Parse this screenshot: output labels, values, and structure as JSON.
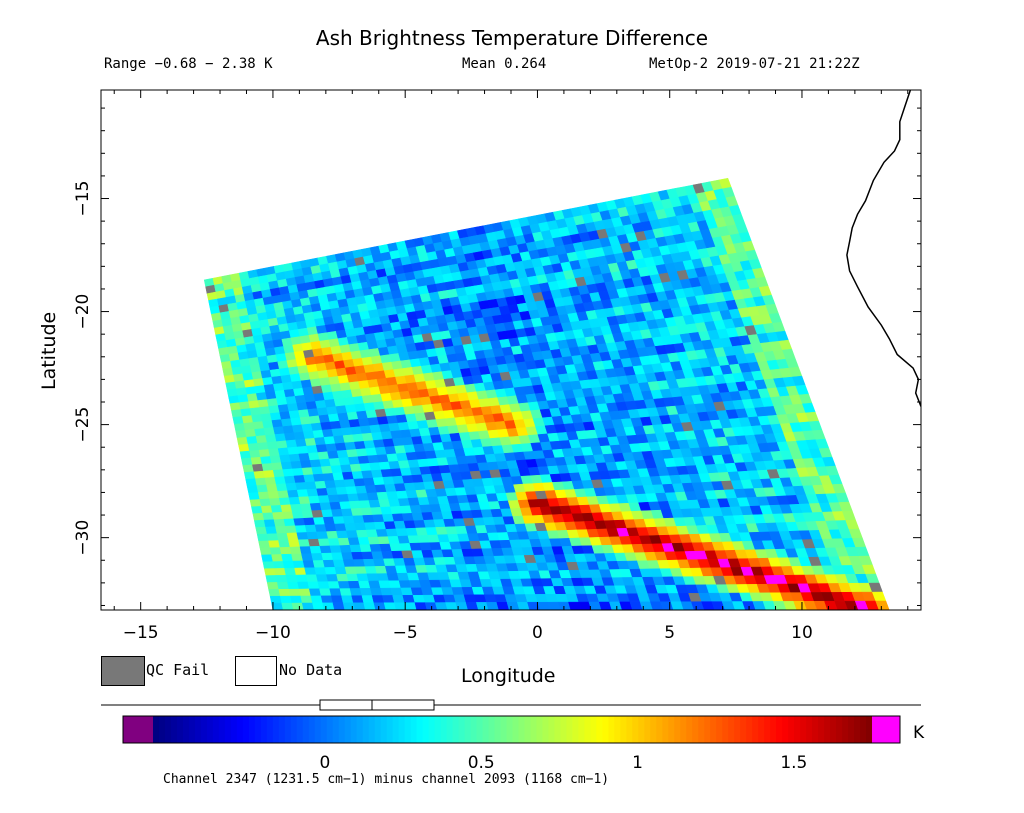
{
  "header": {
    "title": "Ash Brightness Temperature Difference",
    "range": "Range −0.68 − 2.38 K",
    "mean": "Mean 0.264",
    "satellite_time": "MetOp-2 2019-07-21 21:22Z"
  },
  "legend": {
    "qc_fail": "QC Fail",
    "no_data": "No Data",
    "qc_fail_color": "#787878",
    "no_data_color": "#ffffff"
  },
  "colorbar": {
    "unit": "K",
    "ticks": [
      "0",
      "0.5",
      "1",
      "1.5"
    ],
    "tick_values": [
      0,
      0.5,
      1,
      1.5
    ],
    "vmin": -0.55,
    "vmax": 1.75,
    "under_color": "#800080",
    "over_color": "#ff00ff",
    "colors": [
      "#00007f",
      "#0000ff",
      "#007fff",
      "#00ffff",
      "#7fff7f",
      "#ffff00",
      "#ff7f00",
      "#ff0000",
      "#7f0000"
    ],
    "footnote": "Channel 2347 (1231.5 cm−1) minus channel 2093 (1168 cm−1)"
  },
  "chart_data": {
    "type": "heatmap",
    "title": "Ash Brightness Temperature Difference",
    "xlabel": "Longitude",
    "ylabel": "Latitude",
    "xlim": [
      -16.5,
      14.5
    ],
    "ylim": [
      -33.2,
      -10.2
    ],
    "x_ticks": [
      -15,
      -10,
      -5,
      0,
      5,
      10
    ],
    "y_ticks": [
      -15,
      -20,
      -25,
      -30
    ],
    "x_tick_labels": [
      "−15",
      "−10",
      "−5",
      "0",
      "5",
      "10"
    ],
    "y_tick_labels": [
      "−15",
      "−20",
      "−25",
      "−30"
    ],
    "grid": false,
    "swath_corners": {
      "top_left": [
        -12.6,
        -18.6
      ],
      "top_right": [
        7.2,
        -14.1
      ],
      "bottom_right": [
        13.3,
        -33.2
      ],
      "bottom_left": [
        -10.0,
        -33.2
      ]
    },
    "range_K": [
      -0.68,
      2.38
    ],
    "mean_K": 0.264,
    "features": [
      {
        "name": "ash band north",
        "from": [
          -8.5,
          -22.0
        ],
        "to": [
          -1.0,
          -25.0
        ],
        "value_K": 1.3
      },
      {
        "name": "ash band south",
        "from": [
          0.0,
          -28.5
        ],
        "to": [
          12.5,
          -33.2
        ],
        "value_K": 1.8
      }
    ],
    "coastline": [
      [
        14.1,
        -10.2
      ],
      [
        13.9,
        -10.9
      ],
      [
        13.7,
        -11.6
      ],
      [
        13.7,
        -12.4
      ],
      [
        13.5,
        -12.9
      ],
      [
        13.1,
        -13.4
      ],
      [
        12.7,
        -14.2
      ],
      [
        12.4,
        -15.1
      ],
      [
        12.1,
        -15.7
      ],
      [
        11.9,
        -16.3
      ],
      [
        11.8,
        -16.9
      ],
      [
        11.7,
        -17.5
      ],
      [
        11.8,
        -18.2
      ],
      [
        12.1,
        -18.9
      ],
      [
        12.5,
        -19.8
      ],
      [
        13.0,
        -20.6
      ],
      [
        13.3,
        -21.2
      ],
      [
        13.6,
        -21.9
      ],
      [
        14.2,
        -22.5
      ],
      [
        14.4,
        -23.0
      ],
      [
        14.3,
        -23.6
      ],
      [
        14.5,
        -24.2
      ]
    ]
  }
}
